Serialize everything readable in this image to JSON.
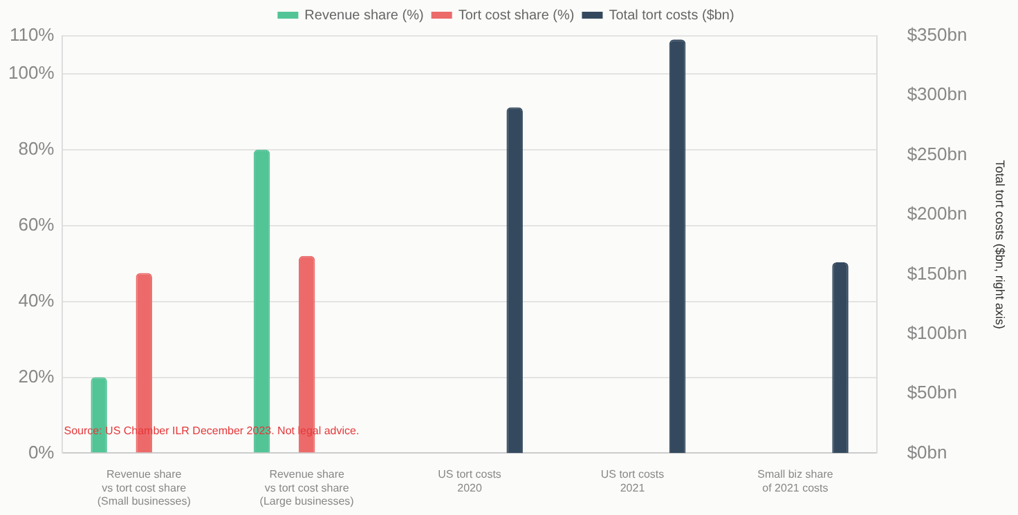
{
  "chart_data": {
    "type": "bar",
    "ylabel": null,
    "y2label": "Total tort costs ($bn, right axis)",
    "categories": [
      "Revenue share\nvs tort cost share\n(Small businesses)",
      "Revenue share\nvs tort cost share\n(Large businesses)",
      "US tort costs\n2020",
      "US tort costs\n2021",
      "Small biz share\nof 2021 costs"
    ],
    "series": [
      {
        "name": "Revenue share (%)",
        "color": "#52c496",
        "values": [
          20,
          80,
          null,
          null,
          null
        ]
      },
      {
        "name": "Tort cost share (%)",
        "color": "#ec6a6a",
        "values": [
          47.5,
          52,
          null,
          null,
          null
        ]
      },
      {
        "name": "Total tort costs ($bn)",
        "color": "#34495e",
        "axis": "y2",
        "values": [
          null,
          null,
          290,
          347,
          160
        ]
      }
    ],
    "ylim": [
      0,
      110
    ],
    "yticks": [
      {
        "value": 0,
        "label": "0%"
      },
      {
        "value": 20,
        "label": "20%"
      },
      {
        "value": 40,
        "label": "40%"
      },
      {
        "value": 60,
        "label": "60%"
      },
      {
        "value": 80,
        "label": "80%"
      },
      {
        "value": 100,
        "label": "100%"
      },
      {
        "value": 110,
        "label": "110%"
      }
    ],
    "y2lim": [
      0,
      350
    ],
    "y2ticks": [
      {
        "value": 0,
        "label": "$0bn"
      },
      {
        "value": 50,
        "label": "$50bn"
      },
      {
        "value": 100,
        "label": "$100bn"
      },
      {
        "value": 150,
        "label": "$150bn"
      },
      {
        "value": 200,
        "label": "$200bn"
      },
      {
        "value": 250,
        "label": "$250bn"
      },
      {
        "value": 300,
        "label": "$300bn"
      },
      {
        "value": 350,
        "label": "$350bn"
      }
    ],
    "grid": "y",
    "legend": "top",
    "annotations": [
      "Source: US Chamber ILR December 2023. Not legal advice."
    ]
  }
}
